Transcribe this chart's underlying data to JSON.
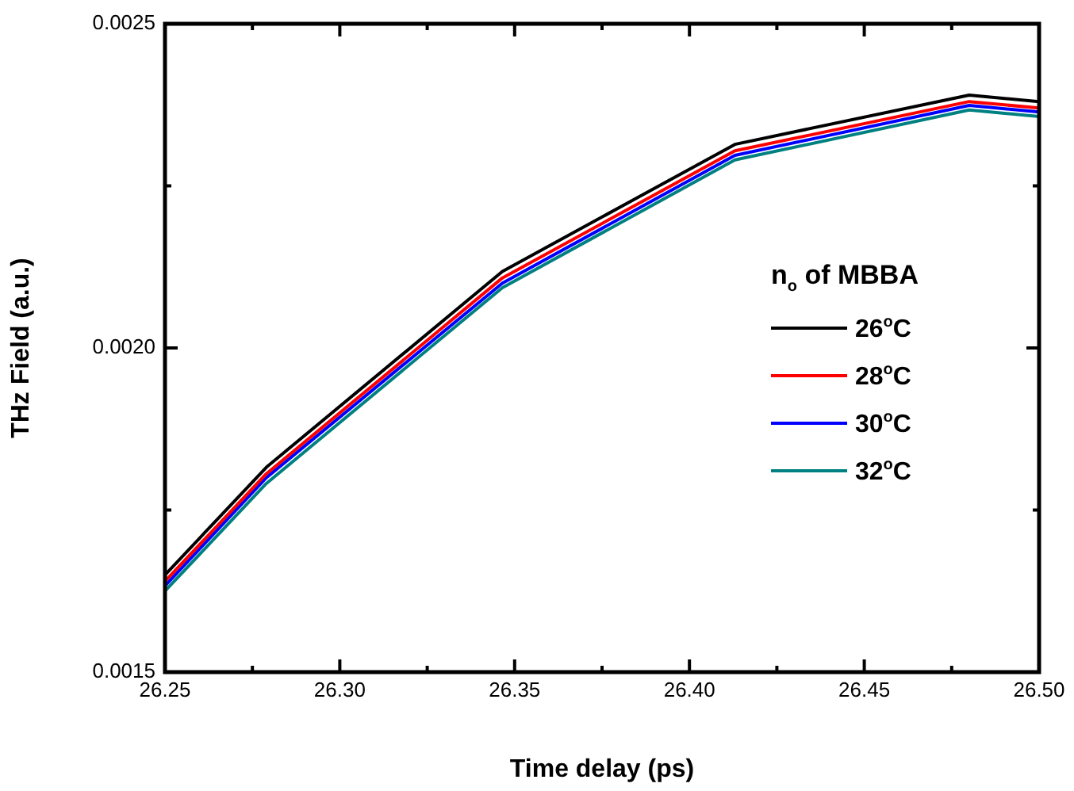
{
  "chart_data": {
    "type": "line",
    "xlabel": "Time delay (ps)",
    "ylabel": "THz Field (a.u.)",
    "legend_title": "n$_{o}$ of MBBA",
    "x": [
      26.25,
      26.279,
      26.3465,
      26.413,
      26.48,
      26.5
    ],
    "series": [
      {
        "name": "26$^{o}$C",
        "color": "#000000",
        "values": [
          0.00165,
          0.001816,
          0.002118,
          0.002314,
          0.00239,
          0.00238
        ]
      },
      {
        "name": "28$^{o}$C",
        "color": "#ff0000",
        "values": [
          0.00164,
          0.001806,
          0.002108,
          0.002304,
          0.00238,
          0.00237
        ]
      },
      {
        "name": "30$^{o}$C",
        "color": "#0000ff",
        "values": [
          0.001633,
          0.0018,
          0.0021,
          0.002297,
          0.002374,
          0.002364
        ]
      },
      {
        "name": "32$^{o}$C",
        "color": "#008080",
        "values": [
          0.001625,
          0.001791,
          0.002093,
          0.00229,
          0.002367,
          0.002357
        ]
      }
    ],
    "xlim": [
      26.25,
      26.5
    ],
    "xticks": [
      {
        "value": 26.25,
        "label": "26.25"
      },
      {
        "value": 26.275,
        "label": null
      },
      {
        "value": 26.3,
        "label": "26.30"
      },
      {
        "value": 26.325,
        "label": null
      },
      {
        "value": 26.35,
        "label": "26.35"
      },
      {
        "value": 26.375,
        "label": null
      },
      {
        "value": 26.4,
        "label": "26.40"
      },
      {
        "value": 26.425,
        "label": null
      },
      {
        "value": 26.45,
        "label": "26.45"
      },
      {
        "value": 26.475,
        "label": null
      },
      {
        "value": 26.5,
        "label": "26.50"
      }
    ],
    "ylim": [
      0.0015,
      0.0025
    ],
    "yticks": [
      {
        "value": 0.0015,
        "label": "0.0015"
      },
      {
        "value": 0.00175,
        "label": null
      },
      {
        "value": 0.002,
        "label": "0.0020"
      },
      {
        "value": 0.00225,
        "label": null
      },
      {
        "value": 0.0025,
        "label": "0.0025"
      }
    ],
    "grid": false,
    "legend": "right",
    "marker": "none",
    "line_style": "solid"
  }
}
